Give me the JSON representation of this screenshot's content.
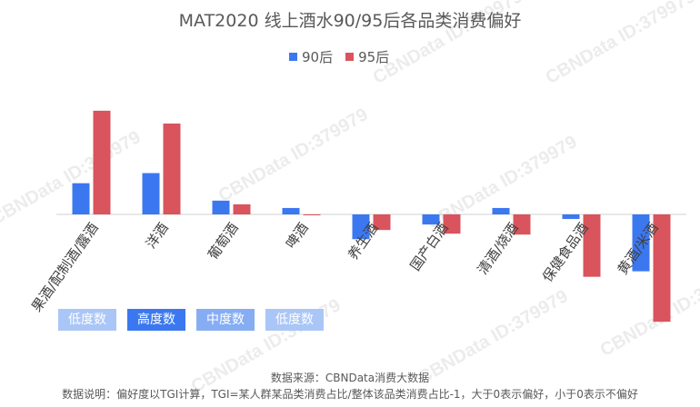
{
  "title": "MAT2020 线上酒水90/95后各品类消费偏好",
  "legend": [
    {
      "name": "90后",
      "color": "#3b78f0"
    },
    {
      "name": "95后",
      "color": "#d9545c"
    }
  ],
  "tags": [
    {
      "label": "低度数",
      "color": "#a9c6f7"
    },
    {
      "label": "高度数",
      "color": "#3b78f0"
    },
    {
      "label": "中度数",
      "color": "#86adf4"
    },
    {
      "label": "低度数",
      "color": "#a9c6f7"
    }
  ],
  "source": "数据来源：CBNData消费大数据",
  "note": "数据说明：偏好度以TGI计算，TGI=某人群某品类消费占比/整体该品类消费占比-1，大于0表示偏好，小于0表示不偏好",
  "watermark": "CBNData ID:379979",
  "chart_data": {
    "type": "bar",
    "categories": [
      "果酒/配制酒/露酒",
      "洋酒",
      "葡萄酒",
      "啤酒",
      "养生酒",
      "国产白酒",
      "清酒/烧酒",
      "保健食品酒",
      "黄酒/米酒"
    ],
    "series": [
      {
        "name": "90后",
        "color": "#3b78f0",
        "values": [
          0.34,
          0.45,
          0.15,
          0.07,
          -0.27,
          -0.11,
          0.07,
          -0.05,
          -0.62
        ]
      },
      {
        "name": "95后",
        "color": "#d9545c",
        "values": [
          1.13,
          0.99,
          0.11,
          -0.01,
          -0.17,
          -0.21,
          -0.22,
          -0.68,
          -1.17
        ]
      }
    ],
    "ylim": [
      -1.2,
      1.3
    ],
    "grid": false,
    "legend_position": "top"
  }
}
